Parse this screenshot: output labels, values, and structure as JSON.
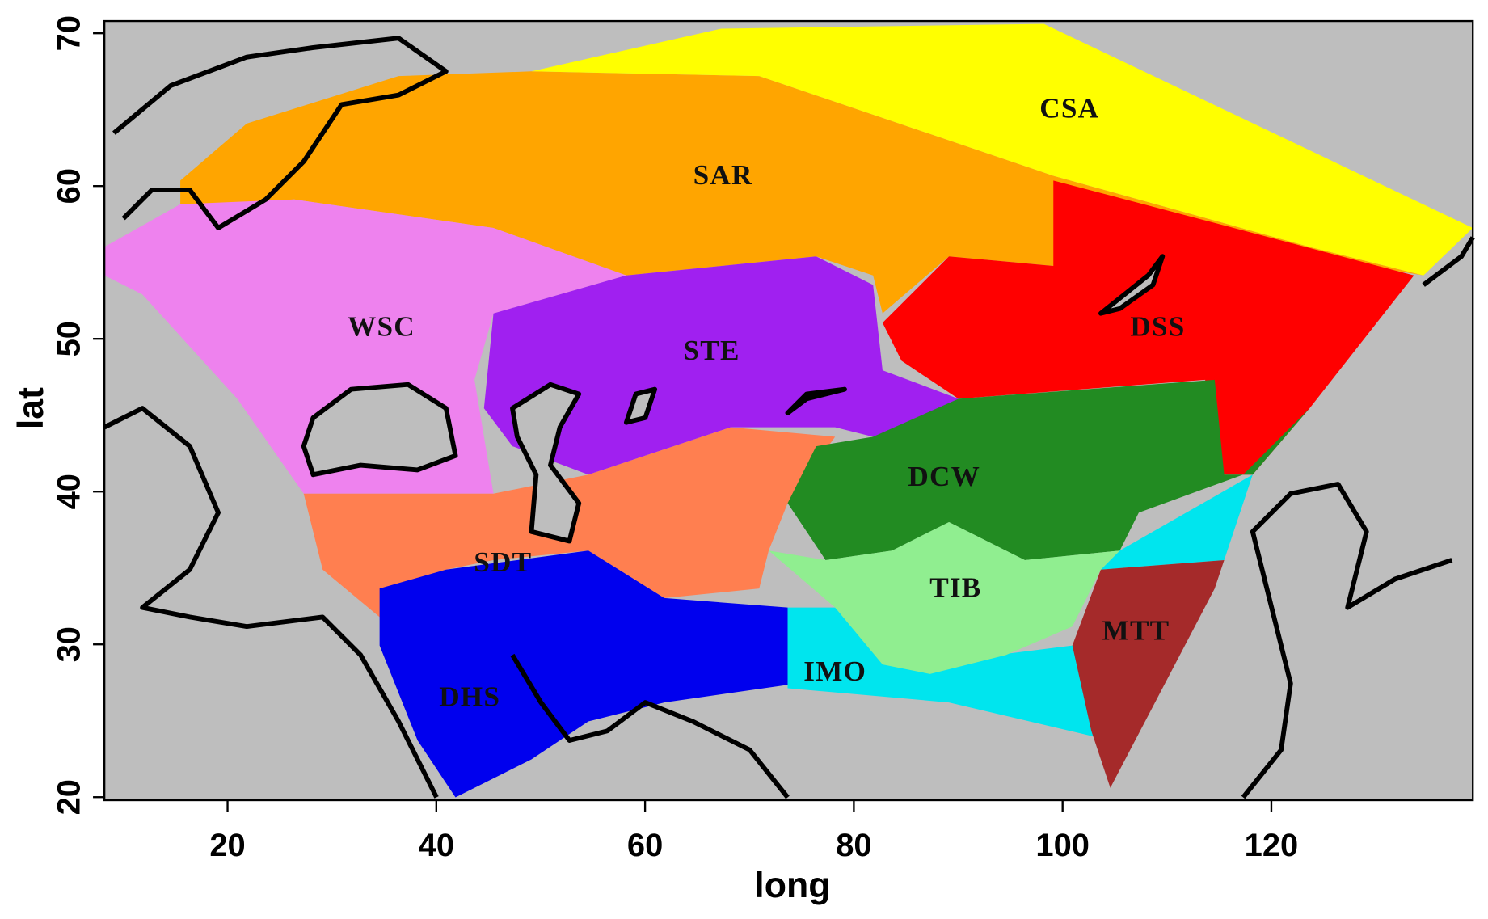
{
  "chart_data": {
    "type": "map",
    "xlabel": "long",
    "ylabel": "lat",
    "xlim": [
      8.2,
      139.3
    ],
    "ylim": [
      19.8,
      70.8
    ],
    "xticks": [
      20,
      40,
      60,
      80,
      100,
      120
    ],
    "yticks": [
      20,
      30,
      40,
      50,
      60,
      70
    ],
    "background": "#bebebe",
    "regions": [
      {
        "name": "SAR",
        "color": "#ffa500"
      },
      {
        "name": "CSA",
        "color": "#ffff00"
      },
      {
        "name": "WSC",
        "color": "#ee82ee"
      },
      {
        "name": "STE",
        "color": "#a020f0"
      },
      {
        "name": "DSS",
        "color": "#ff0000"
      },
      {
        "name": "SDT",
        "color": "#ff7f50"
      },
      {
        "name": "DCW",
        "color": "#228b22"
      },
      {
        "name": "DHS",
        "color": "#0000ee"
      },
      {
        "name": "IMO",
        "color": "#00e5ee"
      },
      {
        "name": "TIB",
        "color": "#90ee90"
      },
      {
        "name": "MTT",
        "color": "#a52a2a"
      }
    ]
  }
}
